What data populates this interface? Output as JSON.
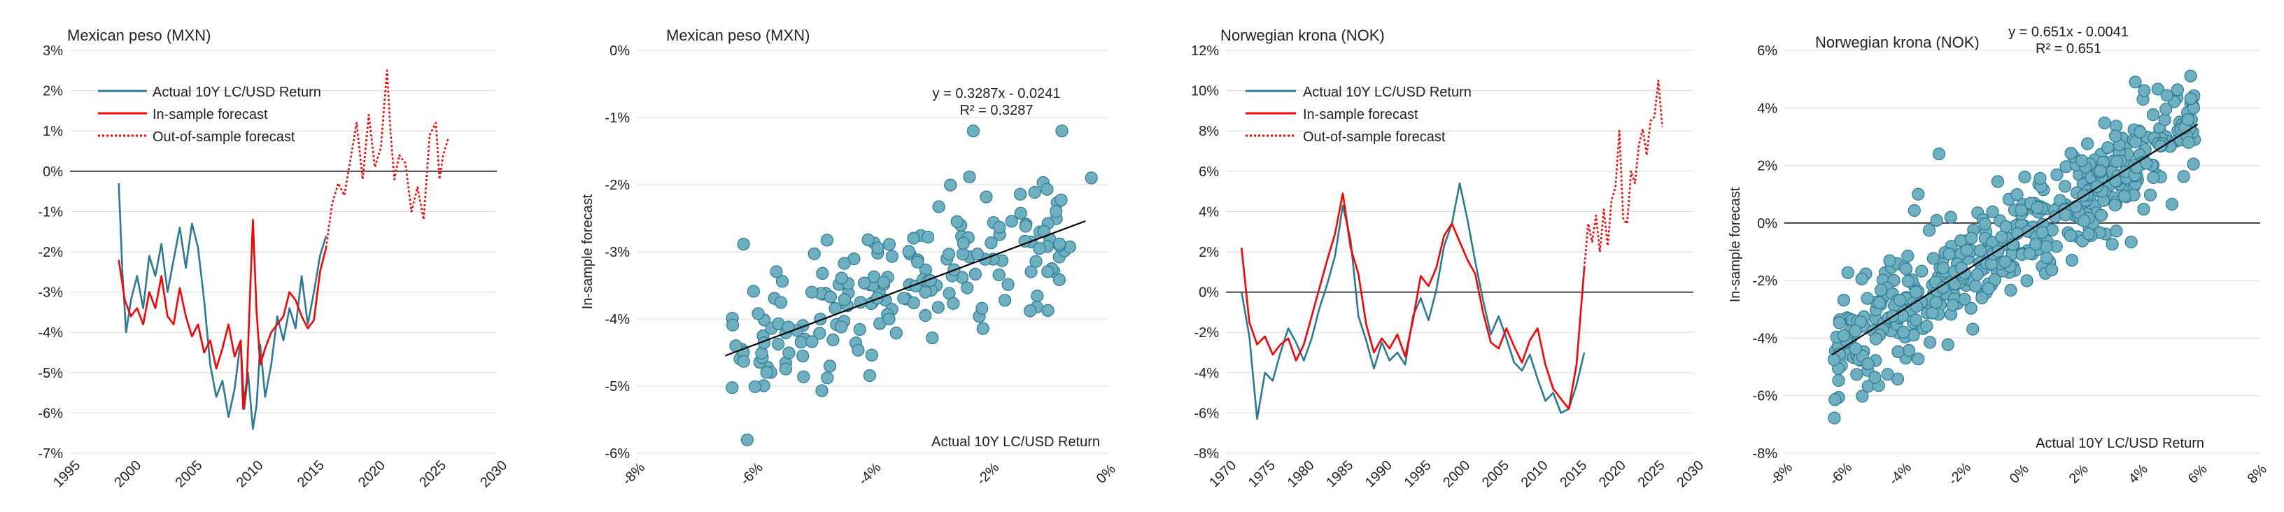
{
  "colors": {
    "actual": "#2a7a96",
    "forecast": "#ff0000",
    "scatter_fill": "#6fb0c0",
    "scatter_stroke": "#2a7a96",
    "fit": "#000000",
    "grid": "#d9d9d9"
  },
  "chart_data": [
    {
      "type": "line",
      "title": "Mexican peso (MXN)",
      "xlabel": "",
      "ylabel": "",
      "xlim": [
        1995,
        2030
      ],
      "ylim": [
        -7,
        3
      ],
      "x_ticks": [
        "1995",
        "2000",
        "2005",
        "2010",
        "2015",
        "2020",
        "2025",
        "2030"
      ],
      "y_ticks": [
        "-7%",
        "-6%",
        "-5%",
        "-4%",
        "-3%",
        "-2%",
        "-1%",
        "0%",
        "1%",
        "2%",
        "3%"
      ],
      "legend": [
        "Actual 10Y LC/USD Return",
        "In-sample forecast",
        "Out-of-sample forecast"
      ],
      "series": [
        {
          "name": "Actual 10Y LC/USD Return",
          "x": [
            1999.0,
            1999.3,
            1999.6,
            2000.0,
            2000.5,
            2001.0,
            2001.5,
            2002.0,
            2002.5,
            2003.0,
            2003.5,
            2004.0,
            2004.5,
            2005.0,
            2005.5,
            2006.0,
            2006.5,
            2007.0,
            2007.5,
            2008.0,
            2008.5,
            2009.0,
            2009.3,
            2009.6,
            2010.0,
            2010.3,
            2010.6,
            2011.0,
            2011.5,
            2012.0,
            2012.5,
            2013.0,
            2013.5,
            2014.0,
            2014.5,
            2015.0,
            2015.5,
            2016.0
          ],
          "values": [
            -0.3,
            -2.5,
            -4.0,
            -3.2,
            -2.6,
            -3.4,
            -2.1,
            -2.6,
            -1.8,
            -3.0,
            -2.2,
            -1.4,
            -2.4,
            -1.3,
            -1.9,
            -3.2,
            -4.8,
            -5.6,
            -5.2,
            -6.1,
            -5.4,
            -4.2,
            -5.9,
            -5.0,
            -6.4,
            -5.8,
            -4.3,
            -5.6,
            -4.8,
            -3.6,
            -4.2,
            -3.4,
            -3.9,
            -2.6,
            -3.8,
            -3.0,
            -2.1,
            -1.6
          ]
        },
        {
          "name": "In-sample forecast",
          "x": [
            1999.0,
            1999.5,
            2000.0,
            2000.5,
            2001.0,
            2001.5,
            2002.0,
            2002.5,
            2003.0,
            2003.5,
            2004.0,
            2004.5,
            2005.0,
            2005.5,
            2006.0,
            2006.5,
            2007.0,
            2007.5,
            2008.0,
            2008.5,
            2009.0,
            2009.2,
            2009.5,
            2010.0,
            2010.3,
            2010.6,
            2011.0,
            2011.5,
            2012.0,
            2012.5,
            2013.0,
            2013.5,
            2014.0,
            2014.5,
            2015.0,
            2015.5,
            2016.0
          ],
          "values": [
            -2.2,
            -3.2,
            -3.6,
            -3.4,
            -3.8,
            -3.0,
            -3.4,
            -2.6,
            -3.6,
            -3.8,
            -2.9,
            -3.6,
            -4.1,
            -3.8,
            -4.5,
            -4.2,
            -4.9,
            -4.4,
            -3.8,
            -4.6,
            -4.2,
            -5.9,
            -5.2,
            -1.2,
            -3.5,
            -4.8,
            -4.4,
            -4.0,
            -3.8,
            -3.6,
            -3.0,
            -3.2,
            -3.6,
            -3.9,
            -3.7,
            -2.5,
            -1.9
          ]
        },
        {
          "name": "Out-of-sample forecast",
          "x": [
            2016.0,
            2016.5,
            2017.0,
            2017.5,
            2018.0,
            2018.5,
            2019.0,
            2019.5,
            2020.0,
            2020.5,
            2021.0,
            2021.3,
            2021.6,
            2022.0,
            2022.5,
            2023.0,
            2023.5,
            2024.0,
            2024.5,
            2025.0,
            2025.3,
            2025.6,
            2026.0
          ],
          "values": [
            -1.9,
            -0.8,
            -0.3,
            -0.6,
            0.3,
            1.2,
            -0.2,
            1.4,
            0.1,
            0.6,
            2.5,
            0.9,
            -0.2,
            0.4,
            0.2,
            -1.0,
            -0.4,
            -1.2,
            0.9,
            1.2,
            -0.2,
            0.4,
            0.8
          ]
        }
      ]
    },
    {
      "type": "scatter",
      "title": "Mexican peso (MXN)",
      "xlabel": "Actual 10Y LC/USD Return",
      "ylabel": "In-sample forecast",
      "xlim": [
        -8,
        0
      ],
      "ylim": [
        -6,
        0
      ],
      "x_ticks": [
        "-8%",
        "-6%",
        "-4%",
        "-2%",
        "0%"
      ],
      "y_ticks": [
        "-6%",
        "-5%",
        "-4%",
        "-3%",
        "-2%",
        "-1%",
        "0%"
      ],
      "fit": {
        "slope": 0.3287,
        "intercept": -0.0241,
        "x_range": [
          -6.5,
          -0.4
        ]
      },
      "equation": "y = 0.3287x - 0.0241",
      "r2": "R² = 0.3287"
    },
    {
      "type": "line",
      "title": "Norwegian krona (NOK)",
      "xlabel": "",
      "ylabel": "",
      "xlim": [
        1970,
        2030
      ],
      "ylim": [
        -8,
        12
      ],
      "x_ticks": [
        "1970",
        "1975",
        "1980",
        "1985",
        "1990",
        "1995",
        "2000",
        "2005",
        "2010",
        "2015",
        "2020",
        "2025",
        "2030"
      ],
      "y_ticks": [
        "-8%",
        "-6%",
        "-4%",
        "-2%",
        "0%",
        "2%",
        "4%",
        "6%",
        "8%",
        "10%",
        "12%"
      ],
      "legend": [
        "Actual 10Y LC/USD Return",
        "In-sample forecast",
        "Out-of-sample forecast"
      ],
      "series": [
        {
          "name": "Actual 10Y LC/USD Return",
          "x": [
            1972.0,
            1973.0,
            1974.0,
            1975.0,
            1976.0,
            1977.0,
            1978.0,
            1979.0,
            1980.0,
            1981.0,
            1982.0,
            1983.0,
            1984.0,
            1985.0,
            1986.0,
            1987.0,
            1988.0,
            1989.0,
            1990.0,
            1991.0,
            1992.0,
            1993.0,
            1994.0,
            1995.0,
            1996.0,
            1997.0,
            1998.0,
            1999.0,
            2000.0,
            2001.0,
            2002.0,
            2003.0,
            2004.0,
            2005.0,
            2006.0,
            2007.0,
            2008.0,
            2009.0,
            2010.0,
            2011.0,
            2012.0,
            2013.0,
            2014.0,
            2015.0,
            2016.0
          ],
          "values": [
            0.0,
            -2.2,
            -6.3,
            -4.0,
            -4.4,
            -3.0,
            -1.8,
            -2.5,
            -3.4,
            -2.3,
            -0.8,
            0.4,
            1.8,
            4.3,
            2.6,
            -1.2,
            -2.4,
            -3.8,
            -2.5,
            -3.4,
            -3.0,
            -3.6,
            -1.2,
            -0.3,
            -1.4,
            0.1,
            2.3,
            3.4,
            5.4,
            3.6,
            1.5,
            -0.4,
            -2.1,
            -1.2,
            -2.3,
            -3.5,
            -3.9,
            -3.1,
            -4.3,
            -5.4,
            -5.0,
            -6.0,
            -5.8,
            -4.6,
            -3.0
          ]
        },
        {
          "name": "In-sample forecast",
          "x": [
            1972.0,
            1973.0,
            1974.0,
            1975.0,
            1976.0,
            1977.0,
            1978.0,
            1979.0,
            1980.0,
            1981.0,
            1982.0,
            1983.0,
            1984.0,
            1985.0,
            1986.0,
            1987.0,
            1988.0,
            1989.0,
            1990.0,
            1991.0,
            1992.0,
            1993.0,
            1994.0,
            1995.0,
            1996.0,
            1997.0,
            1998.0,
            1999.0,
            2000.0,
            2001.0,
            2002.0,
            2003.0,
            2004.0,
            2005.0,
            2006.0,
            2007.0,
            2008.0,
            2009.0,
            2010.0,
            2011.0,
            2012.0,
            2013.0,
            2014.0,
            2015.0,
            2016.0
          ],
          "values": [
            2.2,
            -1.5,
            -2.6,
            -2.2,
            -3.1,
            -2.6,
            -2.3,
            -3.4,
            -2.6,
            -1.2,
            0.2,
            1.6,
            2.9,
            4.9,
            2.2,
            0.9,
            -1.6,
            -3.0,
            -2.3,
            -2.8,
            -2.1,
            -3.2,
            -1.4,
            0.8,
            0.3,
            1.2,
            2.8,
            3.4,
            2.5,
            1.6,
            0.9,
            -1.0,
            -2.5,
            -2.8,
            -1.8,
            -2.7,
            -3.5,
            -2.4,
            -1.8,
            -3.6,
            -4.8,
            -5.3,
            -5.8,
            -3.6,
            1.2
          ]
        },
        {
          "name": "Out-of-sample forecast",
          "x": [
            2016.0,
            2016.5,
            2017.0,
            2017.5,
            2018.0,
            2018.5,
            2019.0,
            2019.5,
            2020.0,
            2020.5,
            2021.0,
            2021.5,
            2022.0,
            2022.5,
            2023.0,
            2023.5,
            2024.0,
            2024.5,
            2025.0,
            2025.5,
            2026.0
          ],
          "values": [
            1.2,
            3.4,
            2.5,
            3.8,
            2.0,
            4.1,
            2.3,
            4.6,
            5.2,
            8.0,
            3.6,
            3.4,
            6.0,
            5.4,
            7.3,
            8.1,
            6.8,
            8.5,
            8.7,
            10.5,
            8.2
          ]
        }
      ]
    },
    {
      "type": "scatter",
      "title": "Norwegian krona (NOK)",
      "xlabel": "Actual 10Y LC/USD Return",
      "ylabel": "In-sample forecast",
      "xlim": [
        -8,
        8
      ],
      "ylim": [
        -8,
        6
      ],
      "x_ticks": [
        "-8%",
        "-6%",
        "-4%",
        "-2%",
        "0%",
        "2%",
        "4%",
        "6%",
        "8%"
      ],
      "y_ticks": [
        "-8%",
        "-6%",
        "-4%",
        "-2%",
        "0%",
        "2%",
        "4%",
        "6%"
      ],
      "fit": {
        "slope": 0.651,
        "intercept": -0.0041,
        "x_range": [
          -6.4,
          5.9
        ]
      },
      "equation": "y = 0.651x - 0.0041",
      "r2": "R² = 0.651"
    }
  ]
}
